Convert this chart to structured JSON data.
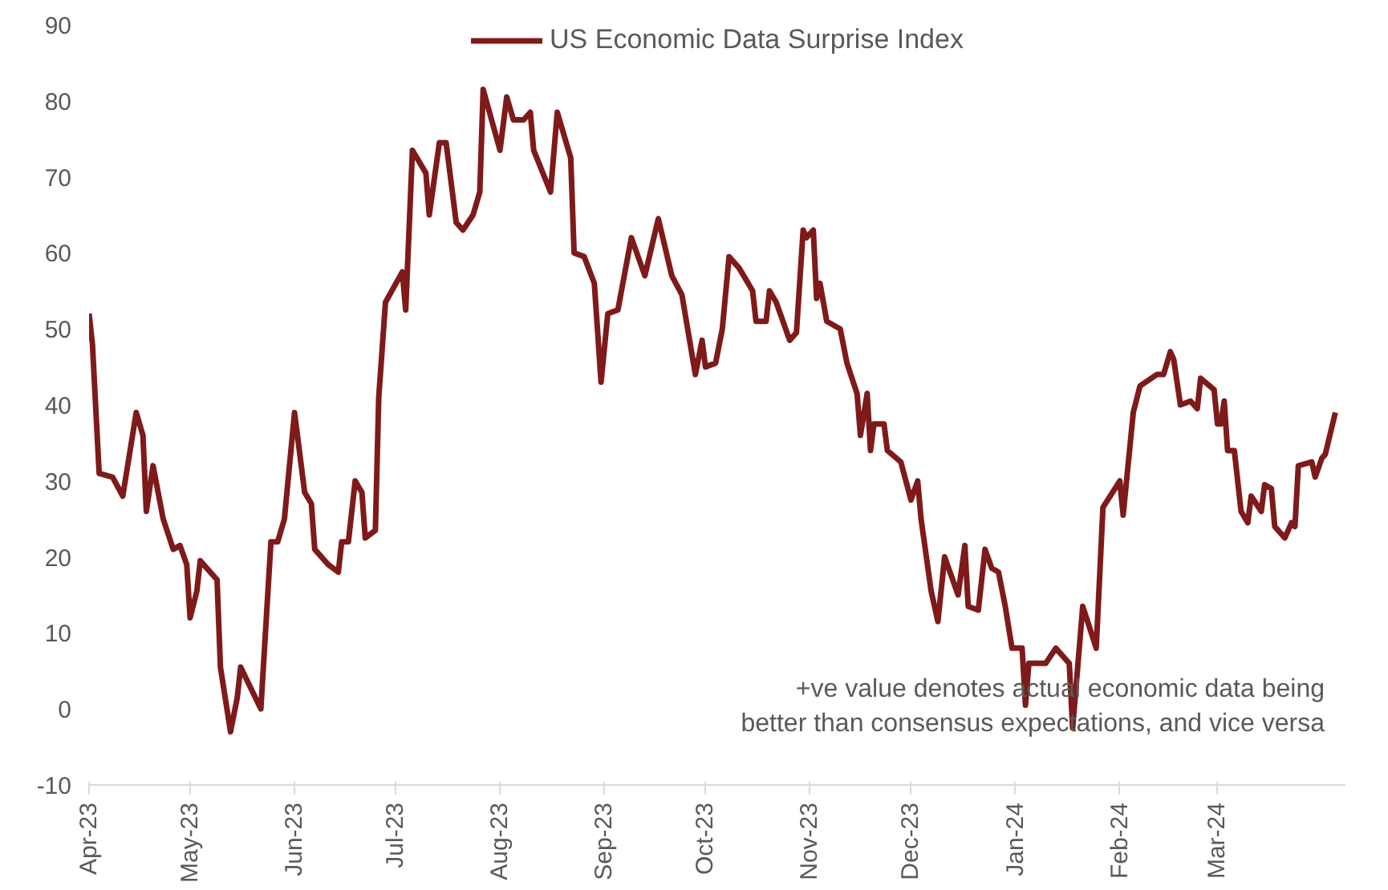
{
  "chart_data": {
    "type": "line",
    "x": [
      "2023-04-01",
      "2023-04-02",
      "2023-04-04",
      "2023-04-08",
      "2023-04-11",
      "2023-04-15",
      "2023-04-17",
      "2023-04-18",
      "2023-04-20",
      "2023-04-23",
      "2023-04-26",
      "2023-04-28",
      "2023-04-30",
      "2023-05-01",
      "2023-05-03",
      "2023-05-04",
      "2023-05-09",
      "2023-05-10",
      "2023-05-13",
      "2023-05-15",
      "2023-05-16",
      "2023-05-22",
      "2023-05-25",
      "2023-05-27",
      "2023-05-29",
      "2023-06-01",
      "2023-06-04",
      "2023-06-06",
      "2023-06-07",
      "2023-06-11",
      "2023-06-14",
      "2023-06-15",
      "2023-06-17",
      "2023-06-19",
      "2023-06-21",
      "2023-06-22",
      "2023-06-25",
      "2023-06-26",
      "2023-06-28",
      "2023-07-03",
      "2023-07-04",
      "2023-07-06",
      "2023-07-10",
      "2023-07-11",
      "2023-07-14",
      "2023-07-16",
      "2023-07-19",
      "2023-07-21",
      "2023-07-24",
      "2023-07-26",
      "2023-07-27",
      "2023-08-01",
      "2023-08-03",
      "2023-08-05",
      "2023-08-08",
      "2023-08-10",
      "2023-08-11",
      "2023-08-16",
      "2023-08-18",
      "2023-08-22",
      "2023-08-23",
      "2023-08-26",
      "2023-08-29",
      "2023-08-31",
      "2023-09-02",
      "2023-09-05",
      "2023-09-09",
      "2023-09-13",
      "2023-09-17",
      "2023-09-21",
      "2023-09-24",
      "2023-09-28",
      "2023-09-30",
      "2023-10-01",
      "2023-10-04",
      "2023-10-06",
      "2023-10-08",
      "2023-10-11",
      "2023-10-15",
      "2023-10-16",
      "2023-10-19",
      "2023-10-20",
      "2023-10-22",
      "2023-10-26",
      "2023-10-28",
      "2023-10-30",
      "2023-10-31",
      "2023-11-02",
      "2023-11-03",
      "2023-11-04",
      "2023-11-06",
      "2023-11-10",
      "2023-11-12",
      "2023-11-15",
      "2023-11-16",
      "2023-11-18",
      "2023-11-19",
      "2023-11-20",
      "2023-11-23",
      "2023-11-24",
      "2023-11-28",
      "2023-12-01",
      "2023-12-03",
      "2023-12-04",
      "2023-12-07",
      "2023-12-09",
      "2023-12-11",
      "2023-12-15",
      "2023-12-17",
      "2023-12-18",
      "2023-12-21",
      "2023-12-23",
      "2023-12-25",
      "2023-12-27",
      "2023-12-29",
      "2023-12-31",
      "2024-01-03",
      "2024-01-04",
      "2024-01-05",
      "2024-01-10",
      "2024-01-13",
      "2024-01-17",
      "2024-01-18",
      "2024-01-21",
      "2024-01-25",
      "2024-01-27",
      "2024-02-01",
      "2024-02-02",
      "2024-02-05",
      "2024-02-07",
      "2024-02-12",
      "2024-02-14",
      "2024-02-16",
      "2024-02-17",
      "2024-02-19",
      "2024-02-22",
      "2024-02-24",
      "2024-02-25",
      "2024-02-29",
      "2024-03-01",
      "2024-03-02",
      "2024-03-03",
      "2024-03-04",
      "2024-03-06",
      "2024-03-08",
      "2024-03-10",
      "2024-03-11",
      "2024-03-14",
      "2024-03-15",
      "2024-03-17",
      "2024-03-18",
      "2024-03-21",
      "2024-03-23",
      "2024-03-24",
      "2024-03-25",
      "2024-03-29",
      "2024-03-30",
      "2024-04-01",
      "2024-04-02",
      "2024-04-05"
    ],
    "series": [
      {
        "name": "US Economic Data Surprise Index",
        "color": "#7f1a1a",
        "values": [
          52,
          48,
          31,
          30.5,
          28,
          39,
          36,
          26,
          32,
          25,
          21,
          21.5,
          19,
          12,
          15.5,
          19.5,
          17,
          5.5,
          -3,
          1.5,
          5.5,
          0,
          22,
          22,
          25,
          39,
          28.5,
          27,
          21,
          19,
          18,
          22,
          22,
          30,
          28.5,
          22.5,
          23.5,
          41,
          53.5,
          57.5,
          52.5,
          73.5,
          70.5,
          65,
          74.5,
          74.5,
          64,
          63,
          65,
          68,
          81.5,
          73.5,
          80.5,
          77.5,
          77.5,
          78.5,
          73.5,
          68,
          78.5,
          72.5,
          60,
          59.5,
          56,
          43,
          52,
          52.5,
          62,
          57,
          64.5,
          57,
          54.5,
          44,
          48.5,
          45,
          45.5,
          50,
          59.5,
          58,
          55,
          51,
          51,
          55,
          53.5,
          48.5,
          49.5,
          63,
          62,
          63,
          54,
          56,
          51,
          50,
          45.5,
          41.5,
          36,
          41.5,
          34,
          37.5,
          37.5,
          34,
          32.5,
          27.5,
          30,
          25,
          15.5,
          11.5,
          20,
          15,
          21.5,
          13.5,
          13,
          21,
          18.5,
          18,
          13.5,
          8,
          8,
          0.5,
          6,
          6,
          8,
          6,
          -2.5,
          13.5,
          8,
          26.5,
          30,
          25.5,
          39,
          42.5,
          44,
          44,
          47,
          46,
          40,
          40.5,
          39.5,
          43.5,
          42,
          37.5,
          37.5,
          40.5,
          34,
          34,
          26,
          24.5,
          28,
          26,
          29.5,
          29,
          24,
          22.5,
          24.5,
          24,
          32,
          32.5,
          30.5,
          33,
          33.5,
          39
        ]
      }
    ],
    "xlim": [
      "2023-04-01",
      "2024-04-08"
    ],
    "xticks": [
      {
        "value": "2023-04-01",
        "label": "Apr-23"
      },
      {
        "value": "2023-05-01",
        "label": "May-23"
      },
      {
        "value": "2023-06-01",
        "label": "Jun-23"
      },
      {
        "value": "2023-07-01",
        "label": "Jul-23"
      },
      {
        "value": "2023-08-01",
        "label": "Aug-23"
      },
      {
        "value": "2023-09-01",
        "label": "Sep-23"
      },
      {
        "value": "2023-10-01",
        "label": "Oct-23"
      },
      {
        "value": "2023-11-01",
        "label": "Nov-23"
      },
      {
        "value": "2023-12-01",
        "label": "Dec-23"
      },
      {
        "value": "2024-01-01",
        "label": "Jan-24"
      },
      {
        "value": "2024-02-01",
        "label": "Feb-24"
      },
      {
        "value": "2024-03-01",
        "label": "Mar-24"
      }
    ],
    "ylim": [
      -10,
      90
    ],
    "yticks": [
      -10,
      0,
      10,
      20,
      30,
      40,
      50,
      60,
      70,
      80,
      90
    ],
    "grid": false,
    "legend": "top",
    "marker": "none",
    "line_style": "solid",
    "annotations": [
      "+ve value denotes actual economic data being\nbetter than consensus expectations, and vice versa"
    ]
  }
}
